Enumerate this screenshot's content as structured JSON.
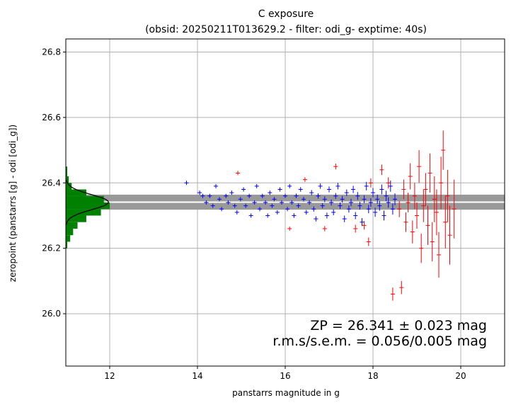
{
  "chart_data": {
    "type": "scatter",
    "title": "C exposure",
    "subtitle": "(obsid: 20250211T013629.2 - filter: odi_g- exptime: 40s)",
    "xlabel": "panstarrs magnitude in g",
    "ylabel": "zeropoint (panstarrs [g] - odi [odi_g])",
    "xlim": [
      11.0,
      21.0
    ],
    "ylim": [
      25.84,
      26.84
    ],
    "xticks": [
      "12",
      "14",
      "16",
      "18",
      "20"
    ],
    "yticks": [
      "26.0",
      "26.2",
      "26.4",
      "26.6",
      "26.8"
    ],
    "grid": true,
    "zeropoint": 26.341,
    "zp_band": [
      26.318,
      26.364
    ],
    "annotations": {
      "zp": "ZP = 26.341 ± 0.023 mag",
      "rms": "r.m.s/s.e.m. = 0.056/0.005 mag"
    },
    "colors": {
      "inliers": "#0000ff",
      "outliers": "#ff0000",
      "histogram": "#008000",
      "band": "#999999",
      "line": "#ffffff",
      "gauss": "#000000"
    },
    "histogram": {
      "bins": [
        {
          "y0": 26.2,
          "y1": 26.22,
          "count": 1
        },
        {
          "y0": 26.22,
          "y1": 26.24,
          "count": 3
        },
        {
          "y0": 26.24,
          "y1": 26.26,
          "count": 5
        },
        {
          "y0": 26.26,
          "y1": 26.28,
          "count": 8
        },
        {
          "y0": 26.28,
          "y1": 26.3,
          "count": 14
        },
        {
          "y0": 26.3,
          "y1": 26.32,
          "count": 24
        },
        {
          "y0": 26.32,
          "y1": 26.34,
          "count": 30
        },
        {
          "y0": 26.34,
          "y1": 26.36,
          "count": 26
        },
        {
          "y0": 26.36,
          "y1": 26.38,
          "count": 14
        },
        {
          "y0": 26.38,
          "y1": 26.4,
          "count": 4
        },
        {
          "y0": 26.4,
          "y1": 26.42,
          "count": 2
        },
        {
          "y0": 26.42,
          "y1": 26.45,
          "count": 1
        }
      ],
      "max_count": 30,
      "max_mag_width": 1.0
    },
    "gauss": {
      "mu": 26.341,
      "sigma": 0.023,
      "peak_mag_width": 0.97
    },
    "inliers": [
      [
        13.75,
        26.4,
        0.002
      ],
      [
        14.05,
        26.37,
        0.003
      ],
      [
        14.12,
        26.36,
        0.003
      ],
      [
        14.2,
        26.34,
        0.003
      ],
      [
        14.28,
        26.36,
        0.003
      ],
      [
        14.35,
        26.33,
        0.003
      ],
      [
        14.42,
        26.39,
        0.003
      ],
      [
        14.5,
        26.35,
        0.003
      ],
      [
        14.55,
        26.32,
        0.003
      ],
      [
        14.65,
        26.36,
        0.004
      ],
      [
        14.7,
        26.34,
        0.004
      ],
      [
        14.78,
        26.37,
        0.004
      ],
      [
        14.85,
        26.33,
        0.004
      ],
      [
        14.9,
        26.31,
        0.004
      ],
      [
        14.98,
        26.35,
        0.004
      ],
      [
        15.05,
        26.38,
        0.004
      ],
      [
        15.1,
        26.33,
        0.004
      ],
      [
        15.18,
        26.36,
        0.004
      ],
      [
        15.22,
        26.3,
        0.005
      ],
      [
        15.3,
        26.34,
        0.005
      ],
      [
        15.35,
        26.39,
        0.005
      ],
      [
        15.42,
        26.32,
        0.005
      ],
      [
        15.48,
        26.36,
        0.005
      ],
      [
        15.55,
        26.34,
        0.005
      ],
      [
        15.6,
        26.3,
        0.005
      ],
      [
        15.65,
        26.37,
        0.005
      ],
      [
        15.7,
        26.33,
        0.005
      ],
      [
        15.75,
        26.35,
        0.006
      ],
      [
        15.82,
        26.31,
        0.006
      ],
      [
        15.88,
        26.38,
        0.006
      ],
      [
        15.92,
        26.34,
        0.006
      ],
      [
        16.0,
        26.36,
        0.006
      ],
      [
        16.05,
        26.32,
        0.006
      ],
      [
        16.1,
        26.39,
        0.006
      ],
      [
        16.15,
        26.34,
        0.006
      ],
      [
        16.2,
        26.3,
        0.007
      ],
      [
        16.25,
        26.36,
        0.007
      ],
      [
        16.3,
        26.33,
        0.007
      ],
      [
        16.35,
        26.38,
        0.007
      ],
      [
        16.42,
        26.35,
        0.007
      ],
      [
        16.48,
        26.31,
        0.007
      ],
      [
        16.55,
        26.34,
        0.007
      ],
      [
        16.6,
        26.37,
        0.008
      ],
      [
        16.65,
        26.32,
        0.008
      ],
      [
        16.7,
        26.29,
        0.008
      ],
      [
        16.75,
        26.36,
        0.008
      ],
      [
        16.8,
        26.39,
        0.008
      ],
      [
        16.85,
        26.33,
        0.008
      ],
      [
        16.9,
        26.35,
        0.009
      ],
      [
        16.95,
        26.3,
        0.009
      ],
      [
        17.0,
        26.38,
        0.009
      ],
      [
        17.05,
        26.34,
        0.009
      ],
      [
        17.1,
        26.31,
        0.009
      ],
      [
        17.15,
        26.36,
        0.009
      ],
      [
        17.2,
        26.39,
        0.01
      ],
      [
        17.25,
        26.33,
        0.01
      ],
      [
        17.3,
        26.35,
        0.01
      ],
      [
        17.35,
        26.29,
        0.01
      ],
      [
        17.4,
        26.37,
        0.01
      ],
      [
        17.45,
        26.32,
        0.011
      ],
      [
        17.5,
        26.34,
        0.011
      ],
      [
        17.55,
        26.38,
        0.011
      ],
      [
        17.6,
        26.3,
        0.011
      ],
      [
        17.65,
        26.36,
        0.012
      ],
      [
        17.7,
        26.33,
        0.012
      ],
      [
        17.75,
        26.28,
        0.012
      ],
      [
        17.8,
        26.35,
        0.012
      ],
      [
        17.85,
        26.39,
        0.013
      ],
      [
        17.9,
        26.32,
        0.013
      ],
      [
        17.95,
        26.34,
        0.013
      ],
      [
        18.0,
        26.37,
        0.014
      ],
      [
        18.05,
        26.31,
        0.014
      ],
      [
        18.1,
        26.35,
        0.014
      ],
      [
        18.15,
        26.33,
        0.015
      ],
      [
        18.2,
        26.38,
        0.015
      ],
      [
        18.25,
        26.3,
        0.015
      ],
      [
        18.3,
        26.36,
        0.016
      ],
      [
        18.35,
        26.34,
        0.016
      ],
      [
        18.4,
        26.39,
        0.017
      ],
      [
        18.45,
        26.32,
        0.017
      ],
      [
        18.5,
        26.35,
        0.018
      ]
    ],
    "outliers": [
      [
        14.92,
        26.43,
        0.003
      ],
      [
        16.1,
        26.26,
        0.006
      ],
      [
        16.45,
        26.41,
        0.007
      ],
      [
        16.9,
        26.26,
        0.008
      ],
      [
        17.15,
        26.45,
        0.009
      ],
      [
        17.6,
        26.26,
        0.012
      ],
      [
        17.8,
        26.27,
        0.013
      ],
      [
        17.9,
        26.22,
        0.013
      ],
      [
        17.95,
        26.4,
        0.014
      ],
      [
        18.2,
        26.44,
        0.016
      ],
      [
        18.35,
        26.4,
        0.017
      ],
      [
        18.45,
        26.06,
        0.02
      ],
      [
        18.6,
        26.32,
        0.025
      ],
      [
        18.65,
        26.08,
        0.02
      ],
      [
        18.7,
        26.38,
        0.03
      ],
      [
        18.75,
        26.28,
        0.03
      ],
      [
        18.8,
        26.34,
        0.03
      ],
      [
        18.85,
        26.42,
        0.04
      ],
      [
        18.9,
        26.25,
        0.035
      ],
      [
        18.95,
        26.36,
        0.04
      ],
      [
        19.0,
        26.3,
        0.04
      ],
      [
        19.05,
        26.45,
        0.05
      ],
      [
        19.1,
        26.2,
        0.045
      ],
      [
        19.15,
        26.33,
        0.05
      ],
      [
        19.2,
        26.38,
        0.05
      ],
      [
        19.25,
        26.27,
        0.06
      ],
      [
        19.3,
        26.43,
        0.06
      ],
      [
        19.35,
        26.22,
        0.06
      ],
      [
        19.4,
        26.35,
        0.07
      ],
      [
        19.45,
        26.31,
        0.07
      ],
      [
        19.5,
        26.18,
        0.07
      ],
      [
        19.55,
        26.4,
        0.08
      ],
      [
        19.6,
        26.5,
        0.06
      ],
      [
        19.65,
        26.28,
        0.08
      ],
      [
        19.7,
        26.36,
        0.08
      ],
      [
        19.75,
        26.24,
        0.09
      ],
      [
        19.85,
        26.32,
        0.09
      ]
    ]
  }
}
